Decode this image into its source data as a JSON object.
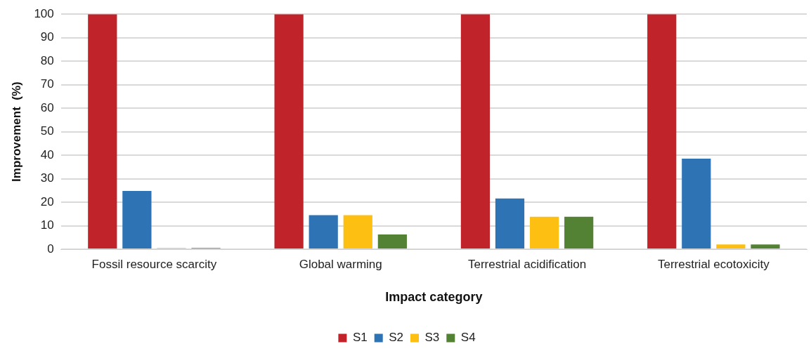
{
  "chart_data": {
    "type": "bar",
    "xlabel": "Impact category",
    "ylabel": "Improvement  (%)",
    "categories": [
      "Fossil resource scarcity",
      "Global warming",
      "Terrestrial acidification",
      "Terrestrial ecotoxicity"
    ],
    "series": [
      {
        "name": "S1",
        "color": "#c0232a",
        "values": [
          100,
          100,
          100,
          100
        ]
      },
      {
        "name": "S2",
        "color": "#2e74b5",
        "values": [
          24.8,
          14.5,
          21.6,
          38.5
        ]
      },
      {
        "name": "S3",
        "color": "#fdbf12",
        "values": [
          0.5,
          14.5,
          13.8,
          2
        ]
      },
      {
        "name": "S4",
        "color": "#548235",
        "values": [
          0.5,
          6.3,
          13.8,
          2
        ]
      }
    ],
    "ylim": [
      0,
      100
    ],
    "yticks": [
      0,
      10,
      20,
      30,
      40,
      50,
      60,
      70,
      80,
      90,
      100
    ],
    "grid": "y",
    "legend": "bottom"
  }
}
